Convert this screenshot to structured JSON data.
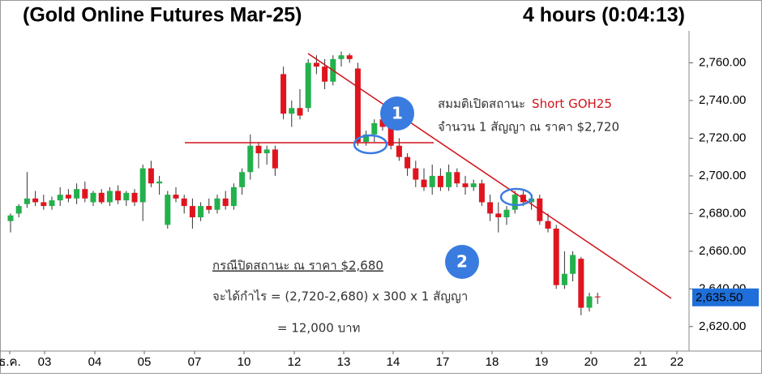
{
  "chart_data": {
    "type": "candlestick",
    "title": "(Gold Online Futures Mar-25)",
    "subtitle": "4 hours (0:04:13)",
    "up_color": "#22b14c",
    "down_color": "#e0141e",
    "open": [
      2676,
      2680,
      2685,
      2688,
      2686,
      2684,
      2687,
      2690,
      2688,
      2693,
      2686,
      2691,
      2686,
      2692,
      2687,
      2691,
      2686,
      2704,
      2696,
      2674,
      2690,
      2688,
      2684,
      2678,
      2684,
      2682,
      2688,
      2684,
      2694,
      2702,
      2716,
      2712,
      2714,
      2754,
      2733,
      2736,
      2736,
      2760,
      2758,
      2750,
      2762,
      2764,
      2757,
      2718,
      2722,
      2730,
      2726,
      2716,
      2710,
      2704,
      2698,
      2694,
      2700,
      2694,
      2702,
      2696,
      2694,
      2696,
      2686,
      2680,
      2678,
      2682,
      2690,
      2686,
      2688,
      2676,
      2672,
      2642,
      2648,
      2656,
      2630,
      2636
    ],
    "high": [
      2680,
      2685,
      2702,
      2692,
      2690,
      2689,
      2694,
      2693,
      2696,
      2697,
      2692,
      2693,
      2694,
      2695,
      2692,
      2693,
      2706,
      2708,
      2700,
      2692,
      2694,
      2690,
      2688,
      2686,
      2688,
      2690,
      2692,
      2696,
      2704,
      2722,
      2718,
      2716,
      2716,
      2758,
      2740,
      2746,
      2762,
      2764,
      2762,
      2764,
      2766,
      2765,
      2760,
      2724,
      2730,
      2732,
      2728,
      2720,
      2712,
      2708,
      2704,
      2706,
      2704,
      2706,
      2704,
      2700,
      2698,
      2698,
      2690,
      2686,
      2684,
      2692,
      2692,
      2690,
      2690,
      2680,
      2674,
      2660,
      2660,
      2657,
      2638,
      2638
    ],
    "low": [
      2670,
      2678,
      2683,
      2684,
      2682,
      2682,
      2684,
      2686,
      2685,
      2686,
      2684,
      2685,
      2684,
      2685,
      2684,
      2684,
      2676,
      2694,
      2690,
      2672,
      2686,
      2680,
      2672,
      2676,
      2680,
      2680,
      2682,
      2682,
      2690,
      2698,
      2704,
      2706,
      2700,
      2730,
      2726,
      2730,
      2734,
      2754,
      2746,
      2748,
      2758,
      2760,
      2716,
      2716,
      2718,
      2724,
      2714,
      2708,
      2700,
      2694,
      2692,
      2690,
      2692,
      2692,
      2694,
      2690,
      2692,
      2684,
      2676,
      2670,
      2674,
      2680,
      2684,
      2682,
      2674,
      2670,
      2640,
      2640,
      2644,
      2626,
      2628,
      2632
    ],
    "close": [
      2679,
      2684,
      2688,
      2686,
      2684,
      2687,
      2690,
      2688,
      2693,
      2688,
      2691,
      2686,
      2692,
      2687,
      2691,
      2686,
      2704,
      2696,
      2697,
      2690,
      2688,
      2684,
      2678,
      2684,
      2682,
      2688,
      2684,
      2694,
      2702,
      2716,
      2712,
      2714,
      2704,
      2733,
      2736,
      2732,
      2760,
      2758,
      2750,
      2762,
      2764,
      2762,
      2718,
      2722,
      2728,
      2726,
      2716,
      2710,
      2704,
      2698,
      2694,
      2700,
      2694,
      2702,
      2696,
      2694,
      2696,
      2686,
      2680,
      2678,
      2682,
      2690,
      2686,
      2688,
      2676,
      2672,
      2642,
      2648,
      2658,
      2630,
      2636,
      2635.5
    ],
    "x_labels": [
      "ธ.ค.",
      "03",
      "04",
      "05",
      "07",
      "10",
      "12",
      "13",
      "14",
      "17",
      "18",
      "19",
      "20",
      "21",
      "22"
    ],
    "ylim": [
      2607,
      2777
    ],
    "yticks": [
      {
        "value": 2620,
        "label": "2,620.00"
      },
      {
        "value": 2640,
        "label": "2,640.00"
      },
      {
        "value": 2660,
        "label": "2,660.00"
      },
      {
        "value": 2680,
        "label": "2,680.00"
      },
      {
        "value": 2700,
        "label": "2,700.00"
      },
      {
        "value": 2720,
        "label": "2,720.00"
      },
      {
        "value": 2740,
        "label": "2,740.00"
      },
      {
        "value": 2760,
        "label": "2,760.00"
      }
    ],
    "last_price": {
      "value": 2635.5,
      "label": "2,635.50"
    },
    "annotations": {
      "badge_1": "1",
      "badge_2": "2",
      "open_text": "สมมติเปิดสถานะ",
      "open_position": "Short GOH25",
      "open_price": "จำนวน 1 สัญญา ณ ราคา $2,720",
      "close_text": "กรณีปิดสถานะ ณ ราคา $2,680",
      "profit_formula": "จะได้กำไร = (2,720-2,680) x 300 x 1 สัญญา",
      "profit_result": "= 12,000 บาท"
    }
  }
}
